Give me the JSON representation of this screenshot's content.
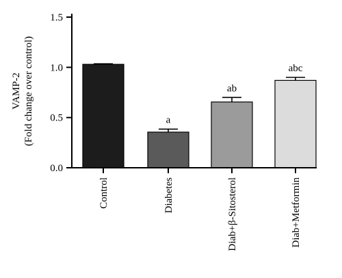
{
  "chart_data": {
    "type": "bar",
    "categories": [
      "Control",
      "Diabetes",
      "Diab+β-Sitosterol",
      "Diab+Metformin"
    ],
    "values": [
      1.03,
      0.355,
      0.655,
      0.87
    ],
    "errors": [
      0.005,
      0.03,
      0.045,
      0.03
    ],
    "annotations": [
      "",
      "a",
      "ab",
      "abc"
    ],
    "bar_colors": [
      "#1c1c1c",
      "#5a5a5a",
      "#9b9b9b",
      "#dcdcdc"
    ],
    "ylabel_line1": "VAMP-2",
    "ylabel_line2": "(Fold change over control)",
    "ylim": [
      0,
      1.5
    ],
    "yticks": [
      "0.0",
      "0.5",
      "1.0",
      "1.5"
    ],
    "ytick_values": [
      0,
      0.5,
      1.0,
      1.5
    ],
    "grid": false
  }
}
